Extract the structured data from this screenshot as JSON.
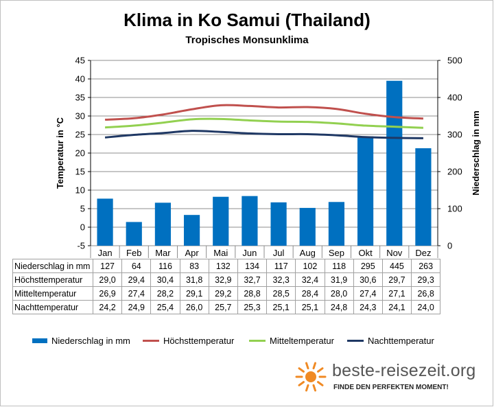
{
  "title": "Klima in Ko Samui (Thailand)",
  "subtitle": "Tropisches Monsunklima",
  "chart_data": {
    "type": "bar+line",
    "title": "Klima in Ko Samui (Thailand)",
    "subtitle": "Tropisches Monsunklima",
    "categories": [
      "Jan",
      "Feb",
      "Mar",
      "Apr",
      "Mai",
      "Jun",
      "Jul",
      "Aug",
      "Sep",
      "Okt",
      "Nov",
      "Dez"
    ],
    "ylabel_left": "Temperatur in °C",
    "ylabel_right": "Niederschlag in mm",
    "ylim_left": [
      -5,
      45
    ],
    "yticks_left": [
      -5,
      0,
      5,
      10,
      15,
      20,
      25,
      30,
      35,
      40,
      45
    ],
    "ylim_right": [
      0,
      500
    ],
    "yticks_right": [
      0,
      100,
      200,
      300,
      400,
      500
    ],
    "grid": true,
    "legend_position": "bottom",
    "series": [
      {
        "name": "Niederschlag in mm",
        "type": "bar",
        "axis": "right",
        "color": "#0070c0",
        "values": [
          127,
          64,
          116,
          83,
          132,
          134,
          117,
          102,
          118,
          295,
          445,
          263
        ],
        "labels": [
          "127",
          "64",
          "116",
          "83",
          "132",
          "134",
          "117",
          "102",
          "118",
          "295",
          "445",
          "263"
        ]
      },
      {
        "name": "Höchsttemperatur",
        "type": "line",
        "axis": "left",
        "color": "#c0504d",
        "values": [
          29.0,
          29.4,
          30.4,
          31.8,
          32.9,
          32.7,
          32.3,
          32.4,
          31.9,
          30.6,
          29.7,
          29.3
        ],
        "labels": [
          "29,0",
          "29,4",
          "30,4",
          "31,8",
          "32,9",
          "32,7",
          "32,3",
          "32,4",
          "31,9",
          "30,6",
          "29,7",
          "29,3"
        ]
      },
      {
        "name": "Mitteltemperatur",
        "type": "line",
        "axis": "left",
        "color": "#92d050",
        "values": [
          26.9,
          27.4,
          28.2,
          29.1,
          29.2,
          28.8,
          28.5,
          28.4,
          28.0,
          27.4,
          27.1,
          26.8
        ],
        "labels": [
          "26,9",
          "27,4",
          "28,2",
          "29,1",
          "29,2",
          "28,8",
          "28,5",
          "28,4",
          "28,0",
          "27,4",
          "27,1",
          "26,8"
        ]
      },
      {
        "name": "Nachttemperatur",
        "type": "line",
        "axis": "left",
        "color": "#1f3864",
        "values": [
          24.2,
          24.9,
          25.4,
          26.0,
          25.7,
          25.3,
          25.1,
          25.1,
          24.8,
          24.3,
          24.1,
          24.0
        ],
        "labels": [
          "24,2",
          "24,9",
          "25,4",
          "26,0",
          "25,7",
          "25,3",
          "25,1",
          "25,1",
          "24,8",
          "24,3",
          "24,1",
          "24,0"
        ]
      }
    ]
  },
  "logo": {
    "text": "beste-reisezeit.org",
    "slogan": "FINDE DEN PERFEKTEN MOMENT!",
    "icon": "sun-icon",
    "color": "#f08a24"
  }
}
